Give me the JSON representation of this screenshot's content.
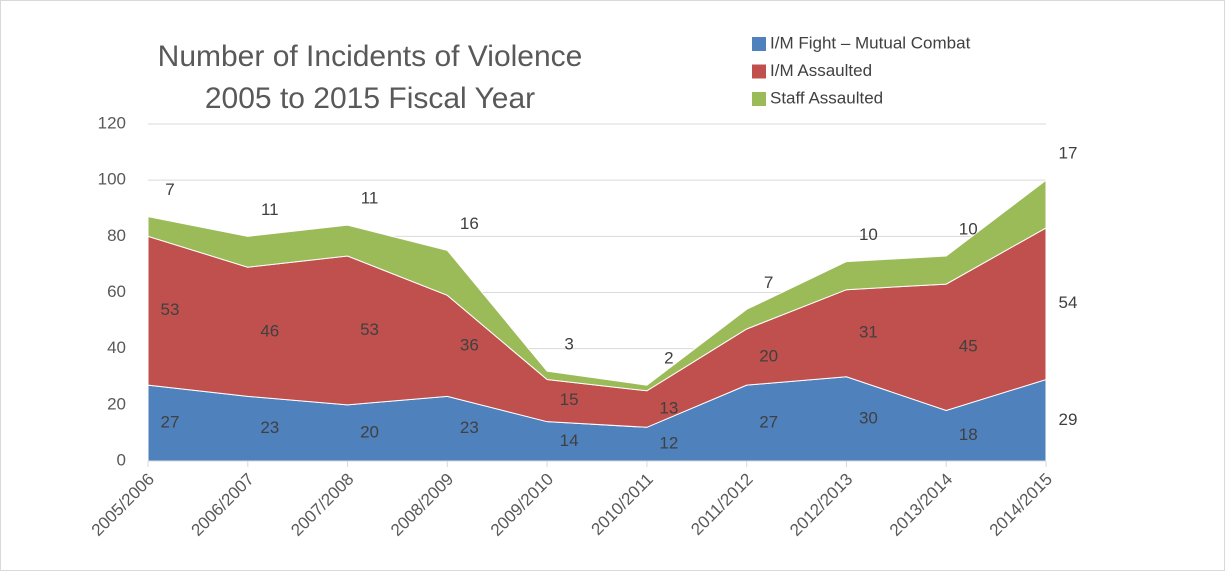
{
  "chart_data": {
    "type": "stacked_area",
    "title": [
      "Number of Incidents of Violence",
      "2005 to 2015 Fiscal Year"
    ],
    "categories": [
      "2005/2006",
      "2006/2007",
      "2007/2008",
      "2008/2009",
      "2009/2010",
      "2010/2011",
      "2011/2012",
      "2012/2013",
      "2013/2014",
      "2014/2015"
    ],
    "series": [
      {
        "name": "I/M Fight – Mutual Combat",
        "color": "#4f81bd",
        "values": [
          27,
          23,
          20,
          23,
          14,
          12,
          27,
          30,
          18,
          29
        ]
      },
      {
        "name": "I/M Assaulted",
        "color": "#c0504d",
        "values": [
          53,
          46,
          53,
          36,
          15,
          13,
          20,
          31,
          45,
          54
        ]
      },
      {
        "name": "Staff Assaulted",
        "color": "#9bbb59",
        "values": [
          7,
          11,
          11,
          16,
          3,
          2,
          7,
          10,
          10,
          17
        ]
      }
    ],
    "ylim": [
      0,
      120
    ],
    "yticks": [
      0,
      20,
      40,
      60,
      80,
      100,
      120
    ],
    "grid": true,
    "legend": "top-right"
  }
}
